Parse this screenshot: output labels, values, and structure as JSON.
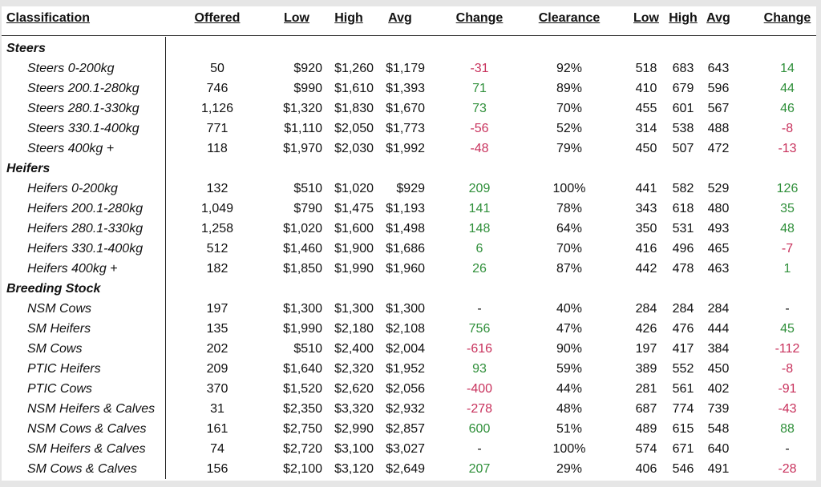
{
  "headers": {
    "classification": "Classification",
    "offered": "Offered",
    "low": "Low",
    "high": "High",
    "avg": "Avg",
    "change": "Change",
    "clearance": "Clearance",
    "low2": "Low",
    "high2": "High",
    "avg2": "Avg",
    "change2": "Change"
  },
  "colors": {
    "positive": "#2f8f3a",
    "negative": "#c8315c"
  },
  "sections": [
    {
      "title": "Steers",
      "rows": [
        {
          "name": "Steers 0-200kg",
          "offered": "50",
          "low": "$920",
          "high": "$1,260",
          "avg": "$1,179",
          "change": "-31",
          "clearance": "92%",
          "low2": "518",
          "high2": "683",
          "avg2": "643",
          "change2": "14"
        },
        {
          "name": "Steers 200.1-280kg",
          "offered": "746",
          "low": "$990",
          "high": "$1,610",
          "avg": "$1,393",
          "change": "71",
          "clearance": "89%",
          "low2": "410",
          "high2": "679",
          "avg2": "596",
          "change2": "44"
        },
        {
          "name": "Steers 280.1-330kg",
          "offered": "1,126",
          "low": "$1,320",
          "high": "$1,830",
          "avg": "$1,670",
          "change": "73",
          "clearance": "70%",
          "low2": "455",
          "high2": "601",
          "avg2": "567",
          "change2": "46"
        },
        {
          "name": "Steers 330.1-400kg",
          "offered": "771",
          "low": "$1,110",
          "high": "$2,050",
          "avg": "$1,773",
          "change": "-56",
          "clearance": "52%",
          "low2": "314",
          "high2": "538",
          "avg2": "488",
          "change2": "-8"
        },
        {
          "name": "Steers 400kg +",
          "offered": "118",
          "low": "$1,970",
          "high": "$2,030",
          "avg": "$1,992",
          "change": "-48",
          "clearance": "79%",
          "low2": "450",
          "high2": "507",
          "avg2": "472",
          "change2": "-13"
        }
      ]
    },
    {
      "title": "Heifers",
      "rows": [
        {
          "name": "Heifers 0-200kg",
          "offered": "132",
          "low": "$510",
          "high": "$1,020",
          "avg": "$929",
          "change": "209",
          "clearance": "100%",
          "low2": "441",
          "high2": "582",
          "avg2": "529",
          "change2": "126"
        },
        {
          "name": "Heifers 200.1-280kg",
          "offered": "1,049",
          "low": "$790",
          "high": "$1,475",
          "avg": "$1,193",
          "change": "141",
          "clearance": "78%",
          "low2": "343",
          "high2": "618",
          "avg2": "480",
          "change2": "35"
        },
        {
          "name": "Heifers 280.1-330kg",
          "offered": "1,258",
          "low": "$1,020",
          "high": "$1,600",
          "avg": "$1,498",
          "change": "148",
          "clearance": "64%",
          "low2": "350",
          "high2": "531",
          "avg2": "493",
          "change2": "48"
        },
        {
          "name": "Heifers 330.1-400kg",
          "offered": "512",
          "low": "$1,460",
          "high": "$1,900",
          "avg": "$1,686",
          "change": "6",
          "clearance": "70%",
          "low2": "416",
          "high2": "496",
          "avg2": "465",
          "change2": "-7"
        },
        {
          "name": "Heifers 400kg +",
          "offered": "182",
          "low": "$1,850",
          "high": "$1,990",
          "avg": "$1,960",
          "change": "26",
          "clearance": "87%",
          "low2": "442",
          "high2": "478",
          "avg2": "463",
          "change2": "1"
        }
      ]
    },
    {
      "title": "Breeding Stock",
      "rows": [
        {
          "name": "NSM Cows",
          "offered": "197",
          "low": "$1,300",
          "high": "$1,300",
          "avg": "$1,300",
          "change": "-",
          "clearance": "40%",
          "low2": "284",
          "high2": "284",
          "avg2": "284",
          "change2": "-"
        },
        {
          "name": "SM Heifers",
          "offered": "135",
          "low": "$1,990",
          "high": "$2,180",
          "avg": "$2,108",
          "change": "756",
          "clearance": "47%",
          "low2": "426",
          "high2": "476",
          "avg2": "444",
          "change2": "45"
        },
        {
          "name": "SM Cows",
          "offered": "202",
          "low": "$510",
          "high": "$2,400",
          "avg": "$2,004",
          "change": "-616",
          "clearance": "90%",
          "low2": "197",
          "high2": "417",
          "avg2": "384",
          "change2": "-112"
        },
        {
          "name": "PTIC Heifers",
          "offered": "209",
          "low": "$1,640",
          "high": "$2,320",
          "avg": "$1,952",
          "change": "93",
          "clearance": "59%",
          "low2": "389",
          "high2": "552",
          "avg2": "450",
          "change2": "-8"
        },
        {
          "name": "PTIC Cows",
          "offered": "370",
          "low": "$1,520",
          "high": "$2,620",
          "avg": "$2,056",
          "change": "-400",
          "clearance": "44%",
          "low2": "281",
          "high2": "561",
          "avg2": "402",
          "change2": "-91"
        },
        {
          "name": "NSM Heifers & Calves",
          "offered": "31",
          "low": "$2,350",
          "high": "$3,320",
          "avg": "$2,932",
          "change": "-278",
          "clearance": "48%",
          "low2": "687",
          "high2": "774",
          "avg2": "739",
          "change2": "-43"
        },
        {
          "name": "NSM Cows & Calves",
          "offered": "161",
          "low": "$2,750",
          "high": "$2,990",
          "avg": "$2,857",
          "change": "600",
          "clearance": "51%",
          "low2": "489",
          "high2": "615",
          "avg2": "548",
          "change2": "88"
        },
        {
          "name": "SM Heifers & Calves",
          "offered": "74",
          "low": "$2,720",
          "high": "$3,100",
          "avg": "$3,027",
          "change": "-",
          "clearance": "100%",
          "low2": "574",
          "high2": "671",
          "avg2": "640",
          "change2": "-"
        },
        {
          "name": "SM Cows & Calves",
          "offered": "156",
          "low": "$2,100",
          "high": "$3,120",
          "avg": "$2,649",
          "change": "207",
          "clearance": "29%",
          "low2": "406",
          "high2": "546",
          "avg2": "491",
          "change2": "-28"
        }
      ]
    }
  ]
}
